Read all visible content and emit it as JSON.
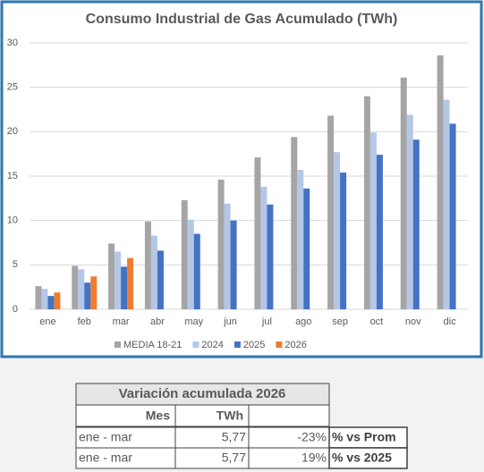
{
  "chart_data": {
    "type": "bar",
    "title": "Consumo Industrial de Gas Acumulado (TWh)",
    "categories": [
      "ene",
      "feb",
      "mar",
      "abr",
      "may",
      "jun",
      "jul",
      "ago",
      "sep",
      "oct",
      "nov",
      "dic"
    ],
    "series": [
      {
        "name": "MEDIA 18-21",
        "color": "#a5a5a5",
        "values": [
          2.6,
          4.9,
          7.4,
          9.9,
          12.3,
          14.6,
          17.1,
          19.4,
          21.8,
          24.0,
          26.1,
          28.6
        ]
      },
      {
        "name": "2024",
        "color": "#b4c7e7",
        "values": [
          2.3,
          4.5,
          6.5,
          8.3,
          10.1,
          11.9,
          13.8,
          15.7,
          17.7,
          19.9,
          21.9,
          23.6
        ]
      },
      {
        "name": "2025",
        "color": "#4472c4",
        "values": [
          1.5,
          3.0,
          4.8,
          6.6,
          8.5,
          10.0,
          11.8,
          13.6,
          15.4,
          17.4,
          19.1,
          20.9
        ]
      },
      {
        "name": "2026",
        "color": "#ed7d31",
        "values": [
          1.9,
          3.7,
          5.77,
          null,
          null,
          null,
          null,
          null,
          null,
          null,
          null,
          null
        ]
      }
    ],
    "ylim": [
      0,
      30
    ],
    "yticks": [
      0,
      5,
      10,
      15,
      20,
      25,
      30
    ],
    "grid": true,
    "legend": "bottom"
  },
  "table": {
    "title": "Variación acumulada 2026",
    "header": [
      "Mes",
      "TWh"
    ],
    "rows": [
      [
        "ene - mar",
        "5,77",
        "-23%",
        "% vs Prom"
      ],
      [
        "ene - mar",
        "5,77",
        "19%",
        "% vs 2025"
      ]
    ]
  }
}
